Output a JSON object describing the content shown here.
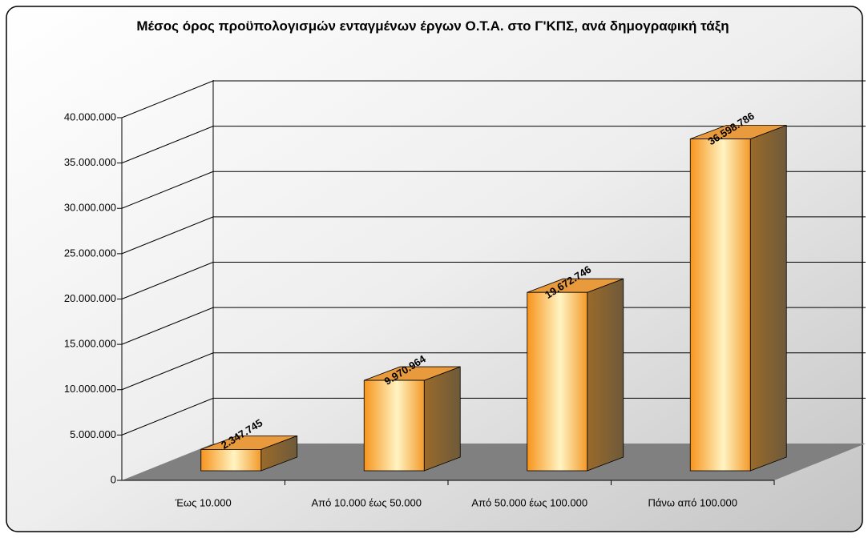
{
  "chart_data": {
    "type": "bar3d",
    "title": "Μέσος όρος προϋπολογισμών ενταγμένων έργων Ο.Τ.Α. στο Γ'ΚΠΣ, ανά δημογραφική τάξη",
    "categories": [
      "Έως 10.000",
      "Από 10.000 έως 50.000",
      "Από 50.000 έως 100.000",
      "Πάνω από 100.000"
    ],
    "values": [
      2347745,
      9970964,
      19672746,
      36598786
    ],
    "value_labels": [
      "2.347.745",
      "9.970.964",
      "19.672.746",
      "36.598.786"
    ],
    "color": "#f7941d",
    "ylim": [
      0,
      40000000
    ],
    "yticks": [
      0,
      {
        "value": 5000000,
        "label": "5.000.000"
      },
      {
        "value": 10000000,
        "label": "10.000.000"
      },
      {
        "value": 15000000,
        "label": "15.000.000"
      },
      {
        "value": 20000000,
        "label": "20.000.000"
      },
      {
        "value": 25000000,
        "label": "25.000.000"
      },
      {
        "value": 30000000,
        "label": "30.000.000"
      },
      {
        "value": 35000000,
        "label": "35.000.000"
      },
      {
        "value": 40000000,
        "label": "40.000.000"
      }
    ],
    "grid": true
  }
}
